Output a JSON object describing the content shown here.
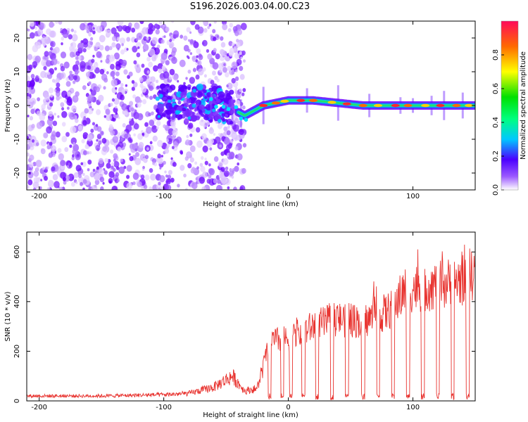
{
  "title": "S196.2026.003.04.00.C23",
  "chart_data": [
    {
      "type": "heatmap",
      "name": "spectrogram",
      "xlabel": "Height of straight line (km)",
      "ylabel": "Frequency (Hz)",
      "xlim": [
        -210,
        150
      ],
      "ylim": [
        -25,
        25
      ],
      "xticks": [
        -200,
        -100,
        0,
        100
      ],
      "yticks": [
        -20,
        -10,
        0,
        10,
        20
      ],
      "ridge": {
        "description_points": [
          {
            "x": -60,
            "y": 1
          },
          {
            "x": -45,
            "y": -1
          },
          {
            "x": -35,
            "y": -3
          },
          {
            "x": -20,
            "y": 0
          },
          {
            "x": 0,
            "y": 1.5
          },
          {
            "x": 20,
            "y": 1.5
          },
          {
            "x": 60,
            "y": 0
          },
          {
            "x": 150,
            "y": 0
          }
        ]
      },
      "colorbar": {
        "label": "Normalized spectral amplitude",
        "range": [
          0.0,
          1.0
        ],
        "ticks": [
          0.0,
          0.2,
          0.4,
          0.6,
          0.8
        ]
      }
    },
    {
      "type": "line",
      "name": "snr",
      "xlabel": "Height of straight line (km)",
      "ylabel": "SNR (10 * v/v)",
      "xlim": [
        -210,
        150
      ],
      "ylim": [
        0,
        680
      ],
      "xticks": [
        -200,
        -100,
        0,
        100
      ],
      "yticks": [
        0,
        200,
        400,
        600
      ],
      "series": [
        {
          "name": "SNR",
          "color": "#e8332f",
          "baseline_points": [
            {
              "x": -210,
              "y": 20
            },
            {
              "x": -150,
              "y": 20
            },
            {
              "x": -100,
              "y": 25
            },
            {
              "x": -80,
              "y": 30
            },
            {
              "x": -60,
              "y": 55
            },
            {
              "x": -45,
              "y": 100
            },
            {
              "x": -35,
              "y": 40
            },
            {
              "x": -25,
              "y": 50
            },
            {
              "x": -15,
              "y": 240
            },
            {
              "x": 0,
              "y": 250
            },
            {
              "x": 20,
              "y": 300
            },
            {
              "x": 40,
              "y": 330
            },
            {
              "x": 60,
              "y": 320
            },
            {
              "x": 80,
              "y": 360
            },
            {
              "x": 95,
              "y": 450
            },
            {
              "x": 110,
              "y": 460
            },
            {
              "x": 125,
              "y": 470
            },
            {
              "x": 140,
              "y": 490
            },
            {
              "x": 150,
              "y": 520
            }
          ],
          "dropout_x": [
            -15,
            -5,
            2,
            12,
            23,
            35,
            47,
            60,
            72,
            84,
            96,
            108,
            120,
            132,
            144
          ]
        }
      ]
    }
  ]
}
